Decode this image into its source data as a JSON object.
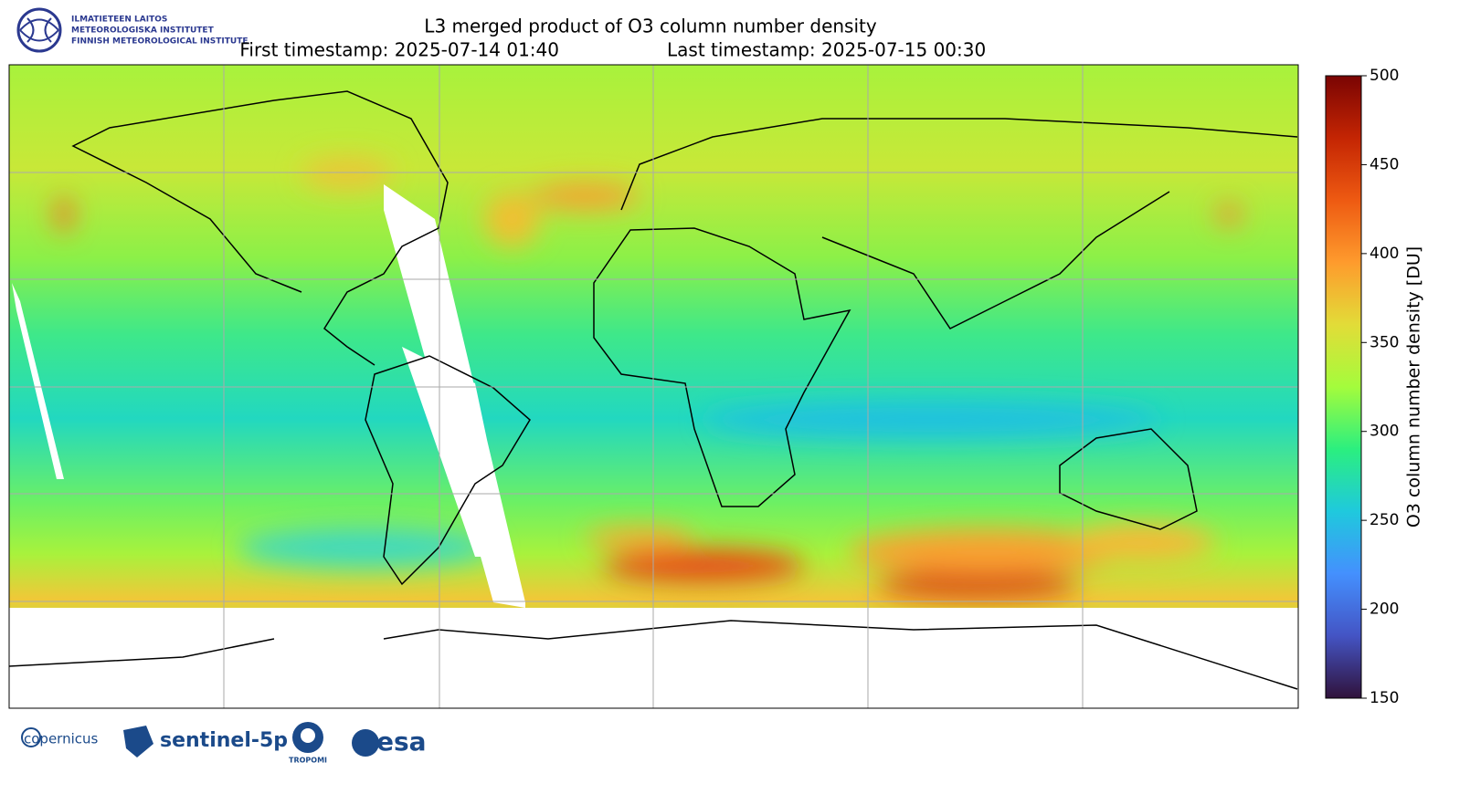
{
  "header": {
    "title": "L3 merged product of O3 column number density",
    "first_timestamp": "First timestamp: 2025-07-14 01:40",
    "last_timestamp": "Last timestamp: 2025-07-15 00:30"
  },
  "institute": [
    "ILMATIETEEN LAITOS",
    "METEOROLOGISKA INSTITUTET",
    "FINNISH METEOROLOGICAL INSTITUTE"
  ],
  "colorbar": {
    "label": "O3 column number density [DU]",
    "lim": [
      150,
      500
    ],
    "ticks": [
      150,
      200,
      250,
      300,
      350,
      400,
      450,
      500
    ]
  },
  "logos": [
    "copernicus",
    "sentinel-5p",
    "TROPOMI",
    "esa"
  ]
}
